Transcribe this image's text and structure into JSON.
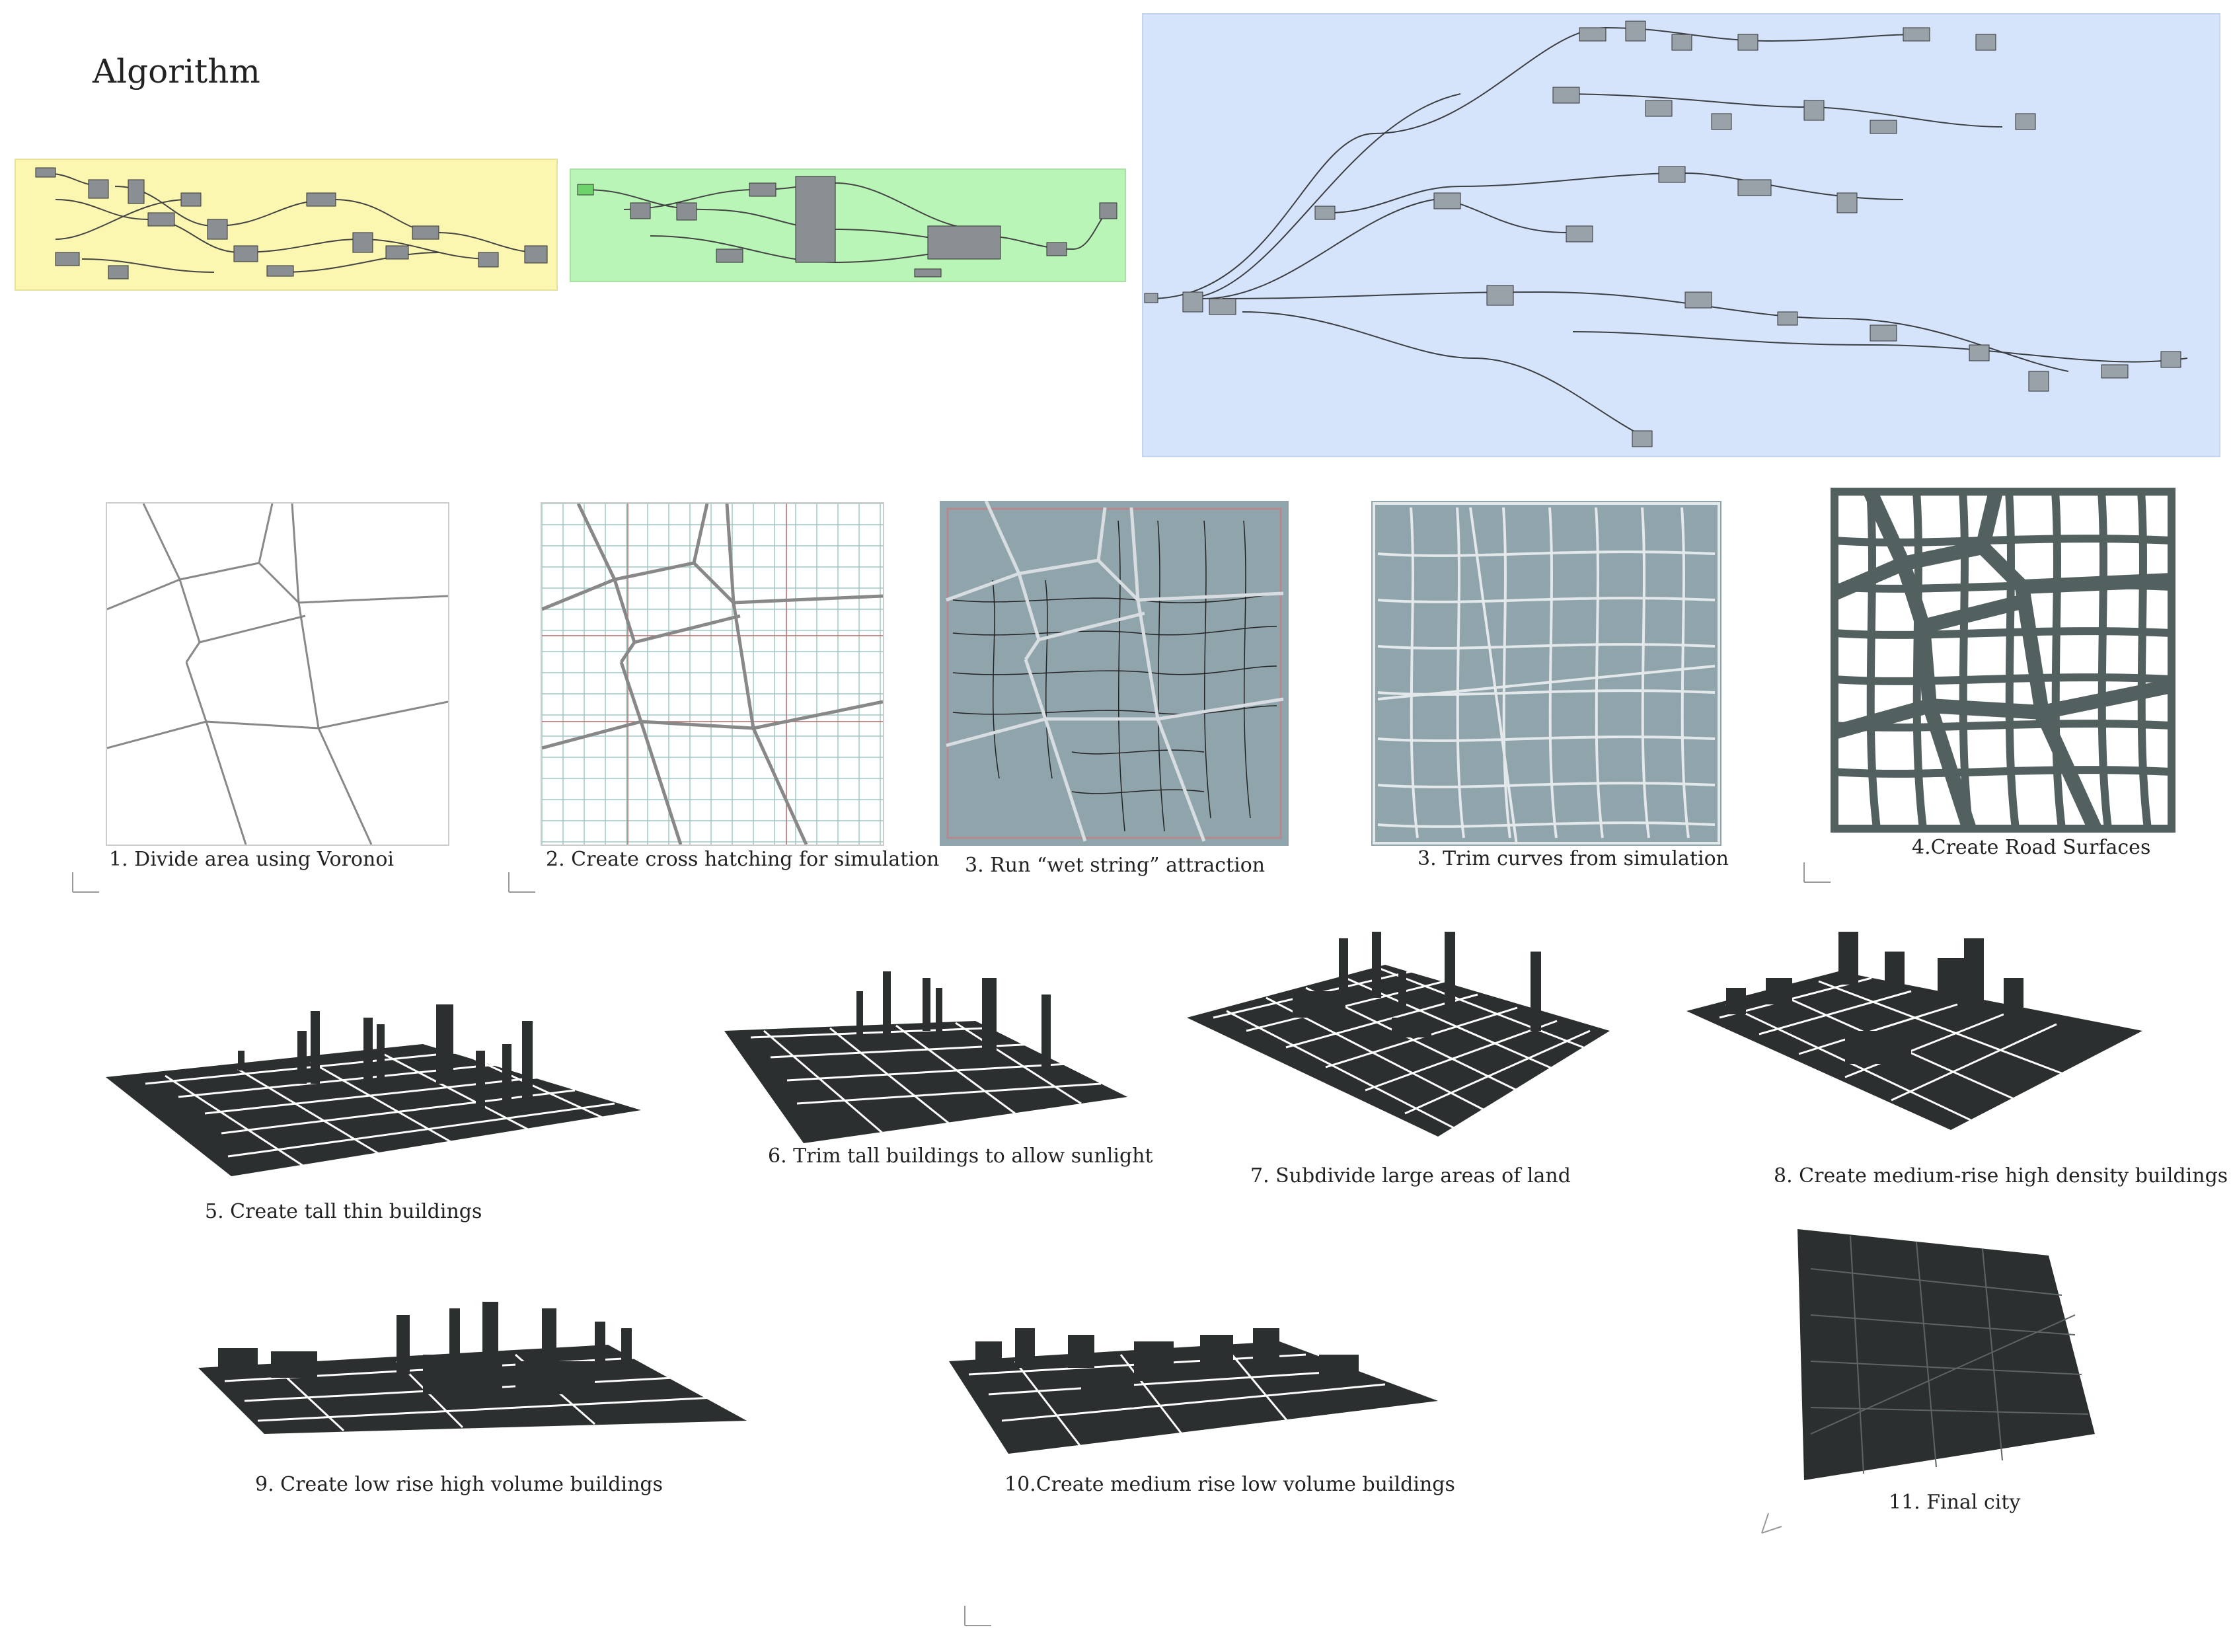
{
  "page": {
    "title": "Algorithm"
  },
  "steps": [
    {
      "label": "1. Divide area using Voronoi"
    },
    {
      "label": "2. Create cross hatching for simulation"
    },
    {
      "label": "3. Run “wet string” attraction"
    },
    {
      "label": "3. Trim curves from simulation"
    },
    {
      "label": "4.Create Road Surfaces"
    },
    {
      "label": "5. Create tall thin buildings"
    },
    {
      "label": "6. Trim tall buildings to allow sunlight"
    },
    {
      "label": "7. Subdivide large areas of land"
    },
    {
      "label": "8. Create medium-rise high density buildings"
    },
    {
      "label": "9. Create low rise high volume buildings"
    },
    {
      "label": "10.Create medium rise low volume buildings"
    },
    {
      "label": "11. Final city"
    }
  ],
  "colors": {
    "yellow_group": "#fbf7b0",
    "green_group": "#b9f5b6",
    "blue_canvas": "#d6e4fb",
    "slate": "#90a4ab",
    "road": "#52605f",
    "building": "#2b2f30"
  },
  "icons": {
    "axis": "axis-gizmo-icon"
  }
}
